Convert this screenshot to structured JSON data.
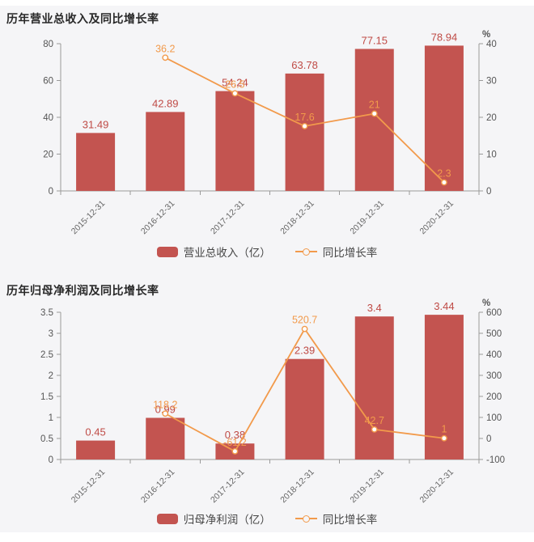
{
  "colors": {
    "bar": "#c35450",
    "bar_label": "#bf4a45",
    "line": "#f29a4b",
    "axis_line": "#9a9a9a",
    "tick_text": "#555555",
    "x_label": "#666666",
    "title": "#282828",
    "legend_text": "#464646",
    "page_bg": "#f5f5f7"
  },
  "chart_data": [
    {
      "type": "bar+line",
      "title": "历年营业总收入及同比增长率",
      "unit_right": "%",
      "legend_position": "bottom-center",
      "grid": false,
      "categories": [
        "2015-12-31",
        "2016-12-31",
        "2017-12-31",
        "2018-12-31",
        "2019-12-31",
        "2020-12-31"
      ],
      "bar": {
        "name": "营业总收入（亿）",
        "values": [
          31.49,
          42.89,
          54.24,
          63.78,
          77.15,
          78.94
        ],
        "labels": [
          "31.49",
          "42.89",
          "54.24",
          "63.78",
          "77.15",
          "78.94"
        ]
      },
      "line": {
        "name": "同比增长率",
        "points": [
          {
            "x": 1,
            "v": 36.2,
            "label": "36.2"
          },
          {
            "x": 2,
            "v": 26.5,
            "label": "26.5"
          },
          {
            "x": 3,
            "v": 17.6,
            "label": "17.6"
          },
          {
            "x": 4,
            "v": 21,
            "label": "21"
          },
          {
            "x": 5,
            "v": 2.3,
            "label": "2.3"
          }
        ]
      },
      "left_axis": {
        "min": 0,
        "max": 80,
        "ticks": [
          {
            "v": 0,
            "label": "0"
          },
          {
            "v": 20,
            "label": "20"
          },
          {
            "v": 40,
            "label": "40"
          },
          {
            "v": 60,
            "label": "60"
          },
          {
            "v": 80,
            "label": "80"
          }
        ]
      },
      "right_axis": {
        "min": 0,
        "max": 40,
        "ticks": [
          {
            "v": 0,
            "label": "0"
          },
          {
            "v": 10,
            "label": "10"
          },
          {
            "v": 20,
            "label": "20"
          },
          {
            "v": 30,
            "label": "30"
          },
          {
            "v": 40,
            "label": "40"
          }
        ]
      }
    },
    {
      "type": "bar+line",
      "title": "历年归母净利润及同比增长率",
      "unit_right": "%",
      "legend_position": "bottom-center",
      "grid": false,
      "categories": [
        "2015-12-31",
        "2016-12-31",
        "2017-12-31",
        "2018-12-31",
        "2019-12-31",
        "2020-12-31"
      ],
      "bar": {
        "name": "归母净利润（亿）",
        "values": [
          0.45,
          0.99,
          0.38,
          2.39,
          3.4,
          3.44
        ],
        "labels": [
          "0.45",
          "0.99",
          "0.38",
          "2.39",
          "3.4",
          "3.44"
        ]
      },
      "line": {
        "name": "同比增长率",
        "points": [
          {
            "x": 1,
            "v": 118.2,
            "label": "118.2"
          },
          {
            "x": 2,
            "v": -61.2,
            "label": "-61.2"
          },
          {
            "x": 3,
            "v": 520.7,
            "label": "520.7"
          },
          {
            "x": 4,
            "v": 42.7,
            "label": "42.7"
          },
          {
            "x": 5,
            "v": 1,
            "label": "1"
          }
        ]
      },
      "left_axis": {
        "min": 0,
        "max": 3.5,
        "ticks": [
          {
            "v": 0,
            "label": "0"
          },
          {
            "v": 0.5,
            "label": "0.5"
          },
          {
            "v": 1,
            "label": "1"
          },
          {
            "v": 1.5,
            "label": "1.5"
          },
          {
            "v": 2,
            "label": "2"
          },
          {
            "v": 2.5,
            "label": "2.5"
          },
          {
            "v": 3,
            "label": "3"
          },
          {
            "v": 3.5,
            "label": "3.5"
          }
        ]
      },
      "right_axis": {
        "min": -100,
        "max": 600,
        "ticks": [
          {
            "v": -100,
            "label": "-100"
          },
          {
            "v": 0,
            "label": "0"
          },
          {
            "v": 100,
            "label": "100"
          },
          {
            "v": 200,
            "label": "200"
          },
          {
            "v": 300,
            "label": "300"
          },
          {
            "v": 400,
            "label": "400"
          },
          {
            "v": 500,
            "label": "500"
          },
          {
            "v": 600,
            "label": "600"
          }
        ]
      }
    }
  ]
}
